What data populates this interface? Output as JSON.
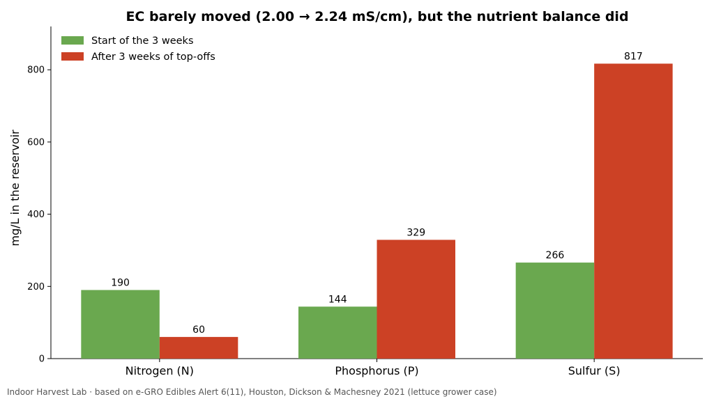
{
  "chart_data": {
    "type": "bar",
    "title": "EC barely moved (2.00 → 2.24 mS/cm), but the nutrient balance did",
    "xlabel": "",
    "ylabel": "mg/L in the reservoir",
    "categories": [
      "Nitrogen (N)",
      "Phosphorus (P)",
      "Sulfur (S)"
    ],
    "series": [
      {
        "name": "Start of the 3 weeks",
        "values": [
          190,
          144,
          266
        ],
        "color": "#6aa84f"
      },
      {
        "name": "After 3 weeks of top-offs",
        "values": [
          60,
          329,
          817
        ],
        "color": "#cc4125"
      }
    ],
    "ylim": [
      0,
      920
    ],
    "yticks": [
      0,
      200,
      400,
      600,
      800
    ],
    "grid": false,
    "legend": "top-left",
    "data_labels": true
  },
  "footer": "Indoor Harvest Lab · based on e-GRO Edibles Alert 6(11), Houston, Dickson & Machesney 2021 (lettuce grower case)"
}
